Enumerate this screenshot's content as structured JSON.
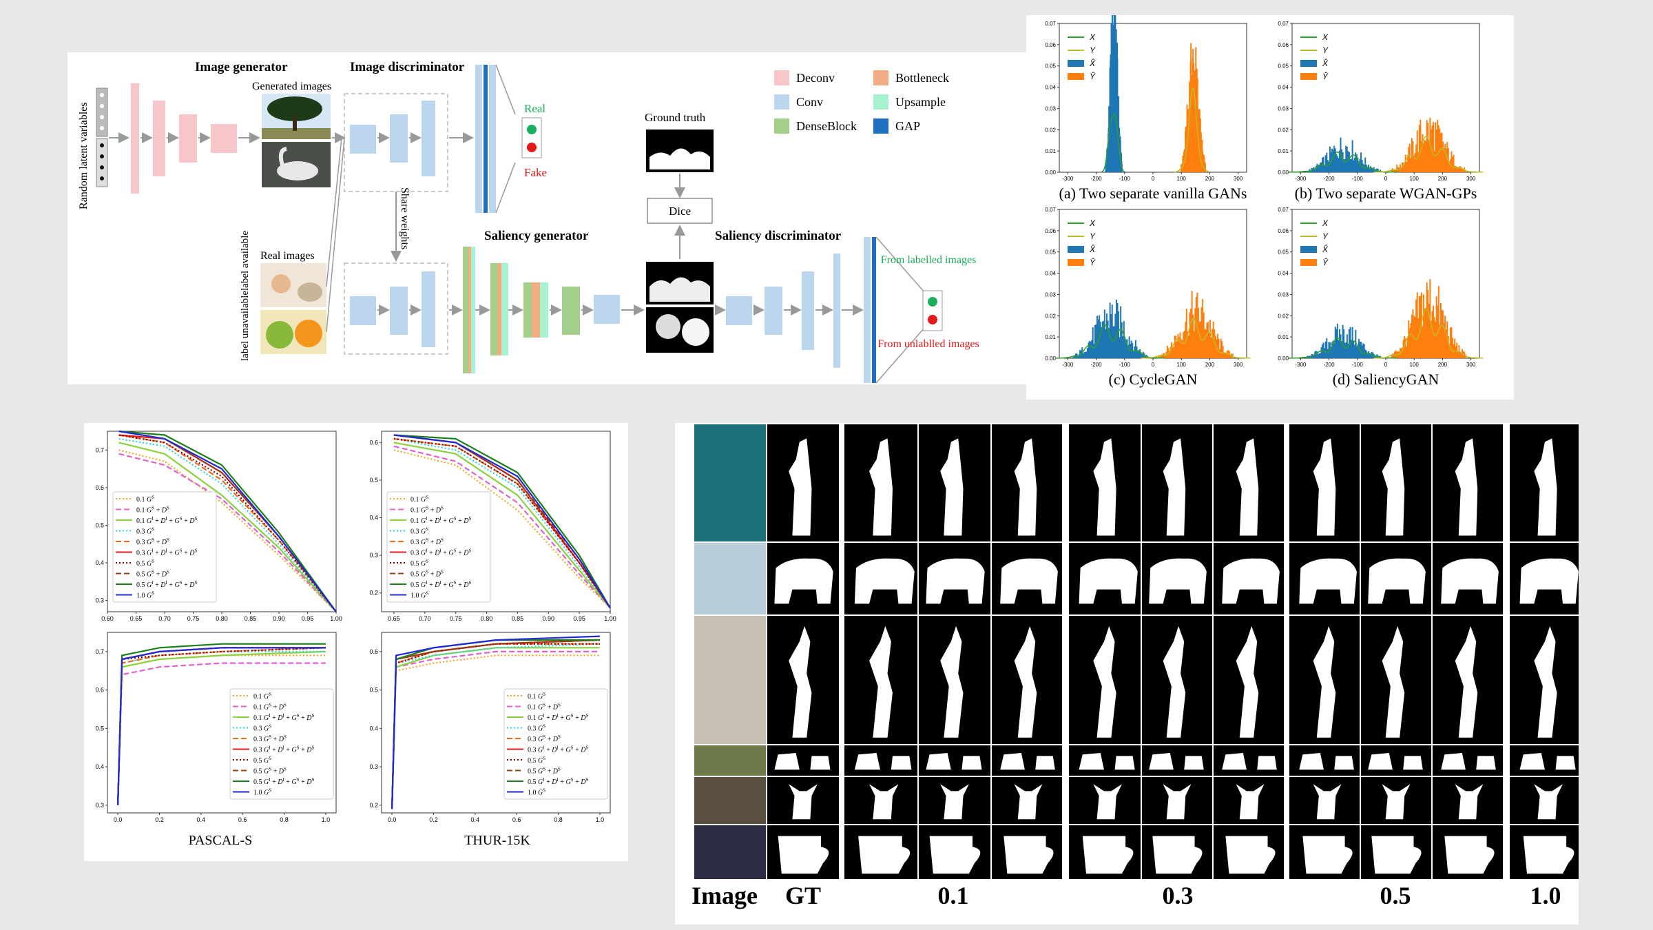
{
  "architecture": {
    "image_generator_title": "Image generator",
    "image_discriminator_title": "Image discriminator",
    "saliency_generator_title": "Saliency generator",
    "saliency_discriminator_title": "Saliency discriminator",
    "random_latent_label": "Random latent variables",
    "generated_images_label": "Generated images",
    "real_images_label": "Real  images",
    "label_available": "label available",
    "label_unavailable": "label unavailable",
    "share_weights": "Share weights",
    "real": "Real",
    "fake": "Fake",
    "ground_truth": "Ground truth",
    "dice": "Dice",
    "from_labelled": "From labelled images",
    "from_unlabelled": "From unlablled images",
    "legend": [
      {
        "label": "Deconv",
        "color": "#f7c6c9"
      },
      {
        "label": "Bottleneck",
        "color": "#f0ad84"
      },
      {
        "label": "Conv",
        "color": "#bcd6ef"
      },
      {
        "label": "Upsample",
        "color": "#a7f3d0"
      },
      {
        "label": "DenseBlock",
        "color": "#a4cf8a"
      },
      {
        "label": "GAP",
        "color": "#1f6fc1"
      }
    ],
    "colors": {
      "real_dot": "#1aaf5d",
      "fake_dot": "#e31a1c",
      "real_text": "#1aaf5d",
      "fake_text": "#e31a1c"
    }
  },
  "histograms": {
    "legend": [
      "X",
      "Y",
      "X̂",
      "Ŷ"
    ],
    "colors": {
      "X": "#2ca02c",
      "Y": "#bcbd22",
      "Xhat": "#1f77b4",
      "Yhat": "#ff7f0e"
    },
    "y_ticks": [
      "0.00",
      "0.01",
      "0.02",
      "0.03",
      "0.04",
      "0.05",
      "0.06",
      "0.07"
    ],
    "x_ticks": [
      "-300",
      "-200",
      "-100",
      "0",
      "100",
      "200",
      "300"
    ],
    "captions": [
      "(a) Two separate vanilla GANs",
      "(b) Two separate WGAN-GPs",
      "(c) CycleGAN",
      "(d) SaliencyGAN"
    ]
  },
  "chart_data": [
    {
      "type": "line",
      "panel": "PASCAL-S precision-recall",
      "xlim": [
        0.6,
        1.0
      ],
      "ylim": [
        0.27,
        0.75
      ],
      "x_ticks": [
        "0.60",
        "0.65",
        "0.70",
        "0.75",
        "0.80",
        "0.85",
        "0.90",
        "0.95",
        "1.00"
      ],
      "y_ticks": [
        "0.3",
        "0.4",
        "0.5",
        "0.6",
        "0.7"
      ],
      "series": [
        {
          "name": "0.1 G^S",
          "x": [
            0.62,
            0.7,
            0.8,
            0.9,
            1.0
          ],
          "y": [
            0.7,
            0.67,
            0.56,
            0.42,
            0.27
          ]
        },
        {
          "name": "0.1 G^S + D^S",
          "x": [
            0.62,
            0.7,
            0.8,
            0.9,
            1.0
          ],
          "y": [
            0.69,
            0.66,
            0.57,
            0.43,
            0.27
          ]
        },
        {
          "name": "0.1 G^I + D^I + G^S + D^S",
          "x": [
            0.62,
            0.7,
            0.8,
            0.9,
            1.0
          ],
          "y": [
            0.72,
            0.69,
            0.58,
            0.44,
            0.27
          ]
        },
        {
          "name": "0.3 G^S",
          "x": [
            0.62,
            0.7,
            0.8,
            0.9,
            1.0
          ],
          "y": [
            0.73,
            0.71,
            0.61,
            0.45,
            0.27
          ]
        },
        {
          "name": "0.3 G^S + D^S",
          "x": [
            0.62,
            0.7,
            0.8,
            0.9,
            1.0
          ],
          "y": [
            0.74,
            0.72,
            0.62,
            0.46,
            0.27
          ]
        },
        {
          "name": "0.3 G^I + D^I + G^S + D^S",
          "x": [
            0.62,
            0.7,
            0.8,
            0.9,
            1.0
          ],
          "y": [
            0.74,
            0.73,
            0.64,
            0.47,
            0.27
          ]
        },
        {
          "name": "0.5 G^S",
          "x": [
            0.62,
            0.7,
            0.8,
            0.9,
            1.0
          ],
          "y": [
            0.74,
            0.72,
            0.63,
            0.46,
            0.27
          ]
        },
        {
          "name": "0.5 G^S + D^S",
          "x": [
            0.62,
            0.7,
            0.8,
            0.9,
            1.0
          ],
          "y": [
            0.75,
            0.73,
            0.64,
            0.47,
            0.27
          ]
        },
        {
          "name": "0.5 G^I + D^I + G^S + D^S",
          "x": [
            0.62,
            0.7,
            0.8,
            0.9,
            1.0
          ],
          "y": [
            0.75,
            0.74,
            0.66,
            0.48,
            0.27
          ]
        },
        {
          "name": "1.0 G^S",
          "x": [
            0.62,
            0.7,
            0.8,
            0.9,
            1.0
          ],
          "y": [
            0.75,
            0.73,
            0.65,
            0.47,
            0.27
          ]
        }
      ]
    },
    {
      "type": "line",
      "panel": "THUR-15K precision-recall",
      "xlim": [
        0.63,
        1.0
      ],
      "ylim": [
        0.15,
        0.63
      ],
      "x_ticks": [
        "0.65",
        "0.70",
        "0.75",
        "0.80",
        "0.85",
        "0.90",
        "0.95",
        "1.00"
      ],
      "y_ticks": [
        "0.2",
        "0.3",
        "0.4",
        "0.5",
        "0.6"
      ],
      "series": [
        {
          "name": "0.1 G^S",
          "x": [
            0.65,
            0.75,
            0.85,
            0.95,
            1.0
          ],
          "y": [
            0.58,
            0.54,
            0.42,
            0.24,
            0.16
          ]
        },
        {
          "name": "0.1 G^S + D^S",
          "x": [
            0.65,
            0.75,
            0.85,
            0.95,
            1.0
          ],
          "y": [
            0.59,
            0.55,
            0.44,
            0.25,
            0.16
          ]
        },
        {
          "name": "0.1 G^I + D^I + G^S + D^S",
          "x": [
            0.65,
            0.75,
            0.85,
            0.95,
            1.0
          ],
          "y": [
            0.6,
            0.57,
            0.46,
            0.26,
            0.16
          ]
        },
        {
          "name": "0.3 G^S",
          "x": [
            0.65,
            0.75,
            0.85,
            0.95,
            1.0
          ],
          "y": [
            0.61,
            0.58,
            0.48,
            0.27,
            0.16
          ]
        },
        {
          "name": "0.3 G^S + D^S",
          "x": [
            0.65,
            0.75,
            0.85,
            0.95,
            1.0
          ],
          "y": [
            0.61,
            0.59,
            0.49,
            0.28,
            0.16
          ]
        },
        {
          "name": "0.3 G^I + D^I + G^S + D^S",
          "x": [
            0.65,
            0.75,
            0.85,
            0.95,
            1.0
          ],
          "y": [
            0.62,
            0.6,
            0.5,
            0.28,
            0.16
          ]
        },
        {
          "name": "0.5 G^S",
          "x": [
            0.65,
            0.75,
            0.85,
            0.95,
            1.0
          ],
          "y": [
            0.61,
            0.59,
            0.49,
            0.28,
            0.16
          ]
        },
        {
          "name": "0.5 G^S + D^S",
          "x": [
            0.65,
            0.75,
            0.85,
            0.95,
            1.0
          ],
          "y": [
            0.62,
            0.6,
            0.5,
            0.29,
            0.16
          ]
        },
        {
          "name": "0.5 G^I + D^I + G^S + D^S",
          "x": [
            0.65,
            0.75,
            0.85,
            0.95,
            1.0
          ],
          "y": [
            0.62,
            0.61,
            0.52,
            0.3,
            0.16
          ]
        },
        {
          "name": "1.0 G^S",
          "x": [
            0.65,
            0.75,
            0.85,
            0.95,
            1.0
          ],
          "y": [
            0.62,
            0.6,
            0.51,
            0.29,
            0.16
          ]
        }
      ]
    },
    {
      "type": "line",
      "panel": "PASCAL-S F-measure",
      "xlim": [
        -0.05,
        1.05
      ],
      "ylim": [
        0.28,
        0.75
      ],
      "x_ticks": [
        "0.0",
        "0.2",
        "0.4",
        "0.6",
        "0.8",
        "1.0"
      ],
      "y_ticks": [
        "0.3",
        "0.4",
        "0.5",
        "0.6",
        "0.7"
      ],
      "series": [
        {
          "name": "0.1 G^S",
          "x": [
            0.0,
            0.02,
            0.2,
            0.5,
            1.0
          ],
          "y": [
            0.3,
            0.66,
            0.68,
            0.69,
            0.69
          ]
        },
        {
          "name": "0.1 G^S + D^S",
          "x": [
            0.0,
            0.02,
            0.2,
            0.5,
            1.0
          ],
          "y": [
            0.3,
            0.64,
            0.66,
            0.67,
            0.67
          ]
        },
        {
          "name": "0.1 G^I + D^I + G^S + D^S",
          "x": [
            0.0,
            0.02,
            0.2,
            0.5,
            1.0
          ],
          "y": [
            0.3,
            0.66,
            0.68,
            0.69,
            0.7
          ]
        },
        {
          "name": "0.3 G^S",
          "x": [
            0.0,
            0.02,
            0.2,
            0.5,
            1.0
          ],
          "y": [
            0.3,
            0.67,
            0.69,
            0.7,
            0.7
          ]
        },
        {
          "name": "0.3 G^S + D^S",
          "x": [
            0.0,
            0.02,
            0.2,
            0.5,
            1.0
          ],
          "y": [
            0.3,
            0.67,
            0.69,
            0.7,
            0.71
          ]
        },
        {
          "name": "0.3 G^I + D^I + G^S + D^S",
          "x": [
            0.0,
            0.02,
            0.2,
            0.5,
            1.0
          ],
          "y": [
            0.3,
            0.68,
            0.7,
            0.71,
            0.71
          ]
        },
        {
          "name": "0.5 G^S",
          "x": [
            0.0,
            0.02,
            0.2,
            0.5,
            1.0
          ],
          "y": [
            0.3,
            0.68,
            0.69,
            0.7,
            0.71
          ]
        },
        {
          "name": "0.5 G^S + D^S",
          "x": [
            0.0,
            0.02,
            0.2,
            0.5,
            1.0
          ],
          "y": [
            0.3,
            0.68,
            0.7,
            0.71,
            0.71
          ]
        },
        {
          "name": "0.5 G^I + D^I + G^S + D^S",
          "x": [
            0.0,
            0.02,
            0.2,
            0.5,
            1.0
          ],
          "y": [
            0.3,
            0.69,
            0.71,
            0.72,
            0.72
          ]
        },
        {
          "name": "1.0 G^S",
          "x": [
            0.0,
            0.02,
            0.2,
            0.5,
            1.0
          ],
          "y": [
            0.3,
            0.68,
            0.7,
            0.71,
            0.71
          ]
        }
      ]
    },
    {
      "type": "line",
      "panel": "THUR-15K F-measure",
      "xlim": [
        -0.05,
        1.05
      ],
      "ylim": [
        0.18,
        0.65
      ],
      "x_ticks": [
        "0.0",
        "0.2",
        "0.4",
        "0.6",
        "0.8",
        "1.0"
      ],
      "y_ticks": [
        "0.2",
        "0.3",
        "0.4",
        "0.5",
        "0.6"
      ],
      "series": [
        {
          "name": "0.1 G^S",
          "x": [
            0.0,
            0.02,
            0.2,
            0.5,
            1.0
          ],
          "y": [
            0.19,
            0.55,
            0.57,
            0.59,
            0.59
          ]
        },
        {
          "name": "0.1 G^S + D^S",
          "x": [
            0.0,
            0.02,
            0.2,
            0.5,
            1.0
          ],
          "y": [
            0.19,
            0.56,
            0.58,
            0.6,
            0.6
          ]
        },
        {
          "name": "0.1 G^I + D^I + G^S + D^S",
          "x": [
            0.0,
            0.02,
            0.2,
            0.5,
            1.0
          ],
          "y": [
            0.19,
            0.56,
            0.59,
            0.61,
            0.61
          ]
        },
        {
          "name": "0.3 G^S",
          "x": [
            0.0,
            0.02,
            0.2,
            0.5,
            1.0
          ],
          "y": [
            0.19,
            0.57,
            0.59,
            0.61,
            0.62
          ]
        },
        {
          "name": "0.3 G^S + D^S",
          "x": [
            0.0,
            0.02,
            0.2,
            0.5,
            1.0
          ],
          "y": [
            0.19,
            0.57,
            0.6,
            0.62,
            0.62
          ]
        },
        {
          "name": "0.3 G^I + D^I + G^S + D^S",
          "x": [
            0.0,
            0.02,
            0.2,
            0.5,
            1.0
          ],
          "y": [
            0.19,
            0.58,
            0.6,
            0.62,
            0.63
          ]
        },
        {
          "name": "0.5 G^S",
          "x": [
            0.0,
            0.02,
            0.2,
            0.5,
            1.0
          ],
          "y": [
            0.19,
            0.57,
            0.6,
            0.62,
            0.62
          ]
        },
        {
          "name": "0.5 G^S + D^S",
          "x": [
            0.0,
            0.02,
            0.2,
            0.5,
            1.0
          ],
          "y": [
            0.19,
            0.58,
            0.6,
            0.62,
            0.63
          ]
        },
        {
          "name": "0.5 G^I + D^I + G^S + D^S",
          "x": [
            0.0,
            0.02,
            0.2,
            0.5,
            1.0
          ],
          "y": [
            0.19,
            0.58,
            0.61,
            0.63,
            0.63
          ]
        },
        {
          "name": "1.0 G^S",
          "x": [
            0.0,
            0.02,
            0.2,
            0.5,
            1.0
          ],
          "y": [
            0.19,
            0.59,
            0.61,
            0.63,
            0.64
          ]
        }
      ]
    }
  ],
  "line_legend": [
    {
      "prefix": "0.1 ",
      "main": "G",
      "sup": "S",
      "rest": [],
      "color": "#f5a623",
      "dash": "2,3"
    },
    {
      "prefix": "0.1 ",
      "main": "G",
      "sup": "S",
      "rest": [
        [
          "D",
          "S"
        ]
      ],
      "color": "#e060d0",
      "dash": "8,4"
    },
    {
      "prefix": "0.1 ",
      "main": "G",
      "sup": "I",
      "rest": [
        [
          "D",
          "I"
        ],
        [
          "G",
          "S"
        ],
        [
          "D",
          "S"
        ]
      ],
      "color": "#8bd13c",
      "dash": ""
    },
    {
      "prefix": "0.3 ",
      "main": "G",
      "sup": "S",
      "rest": [],
      "color": "#22d3e6",
      "dash": "2,3"
    },
    {
      "prefix": "0.3 ",
      "main": "G",
      "sup": "S",
      "rest": [
        [
          "D",
          "S"
        ]
      ],
      "color": "#f06a1a",
      "dash": "8,4"
    },
    {
      "prefix": "0.3 ",
      "main": "G",
      "sup": "I",
      "rest": [
        [
          "D",
          "I"
        ],
        [
          "G",
          "S"
        ],
        [
          "D",
          "S"
        ]
      ],
      "color": "#e31a1c",
      "dash": ""
    },
    {
      "prefix": "0.5 ",
      "main": "G",
      "sup": "S",
      "rest": [],
      "color": "#8b0000",
      "dash": "2,3"
    },
    {
      "prefix": "0.5 ",
      "main": "G",
      "sup": "S",
      "rest": [
        [
          "D",
          "S"
        ]
      ],
      "color": "#8b4513",
      "dash": "8,4"
    },
    {
      "prefix": "0.5 ",
      "main": "G",
      "sup": "I",
      "rest": [
        [
          "D",
          "I"
        ],
        [
          "G",
          "S"
        ],
        [
          "D",
          "S"
        ]
      ],
      "color": "#1a7f1a",
      "dash": ""
    },
    {
      "prefix": "1.0 ",
      "main": "G",
      "sup": "S",
      "rest": [],
      "color": "#1f2ad6",
      "dash": ""
    }
  ],
  "chart_captions": {
    "left": "PASCAL-S",
    "right": "THUR-15K"
  },
  "grid": {
    "bottom_labels": [
      "Image",
      "GT",
      "0.1",
      "0.3",
      "0.5",
      "1.0"
    ]
  }
}
